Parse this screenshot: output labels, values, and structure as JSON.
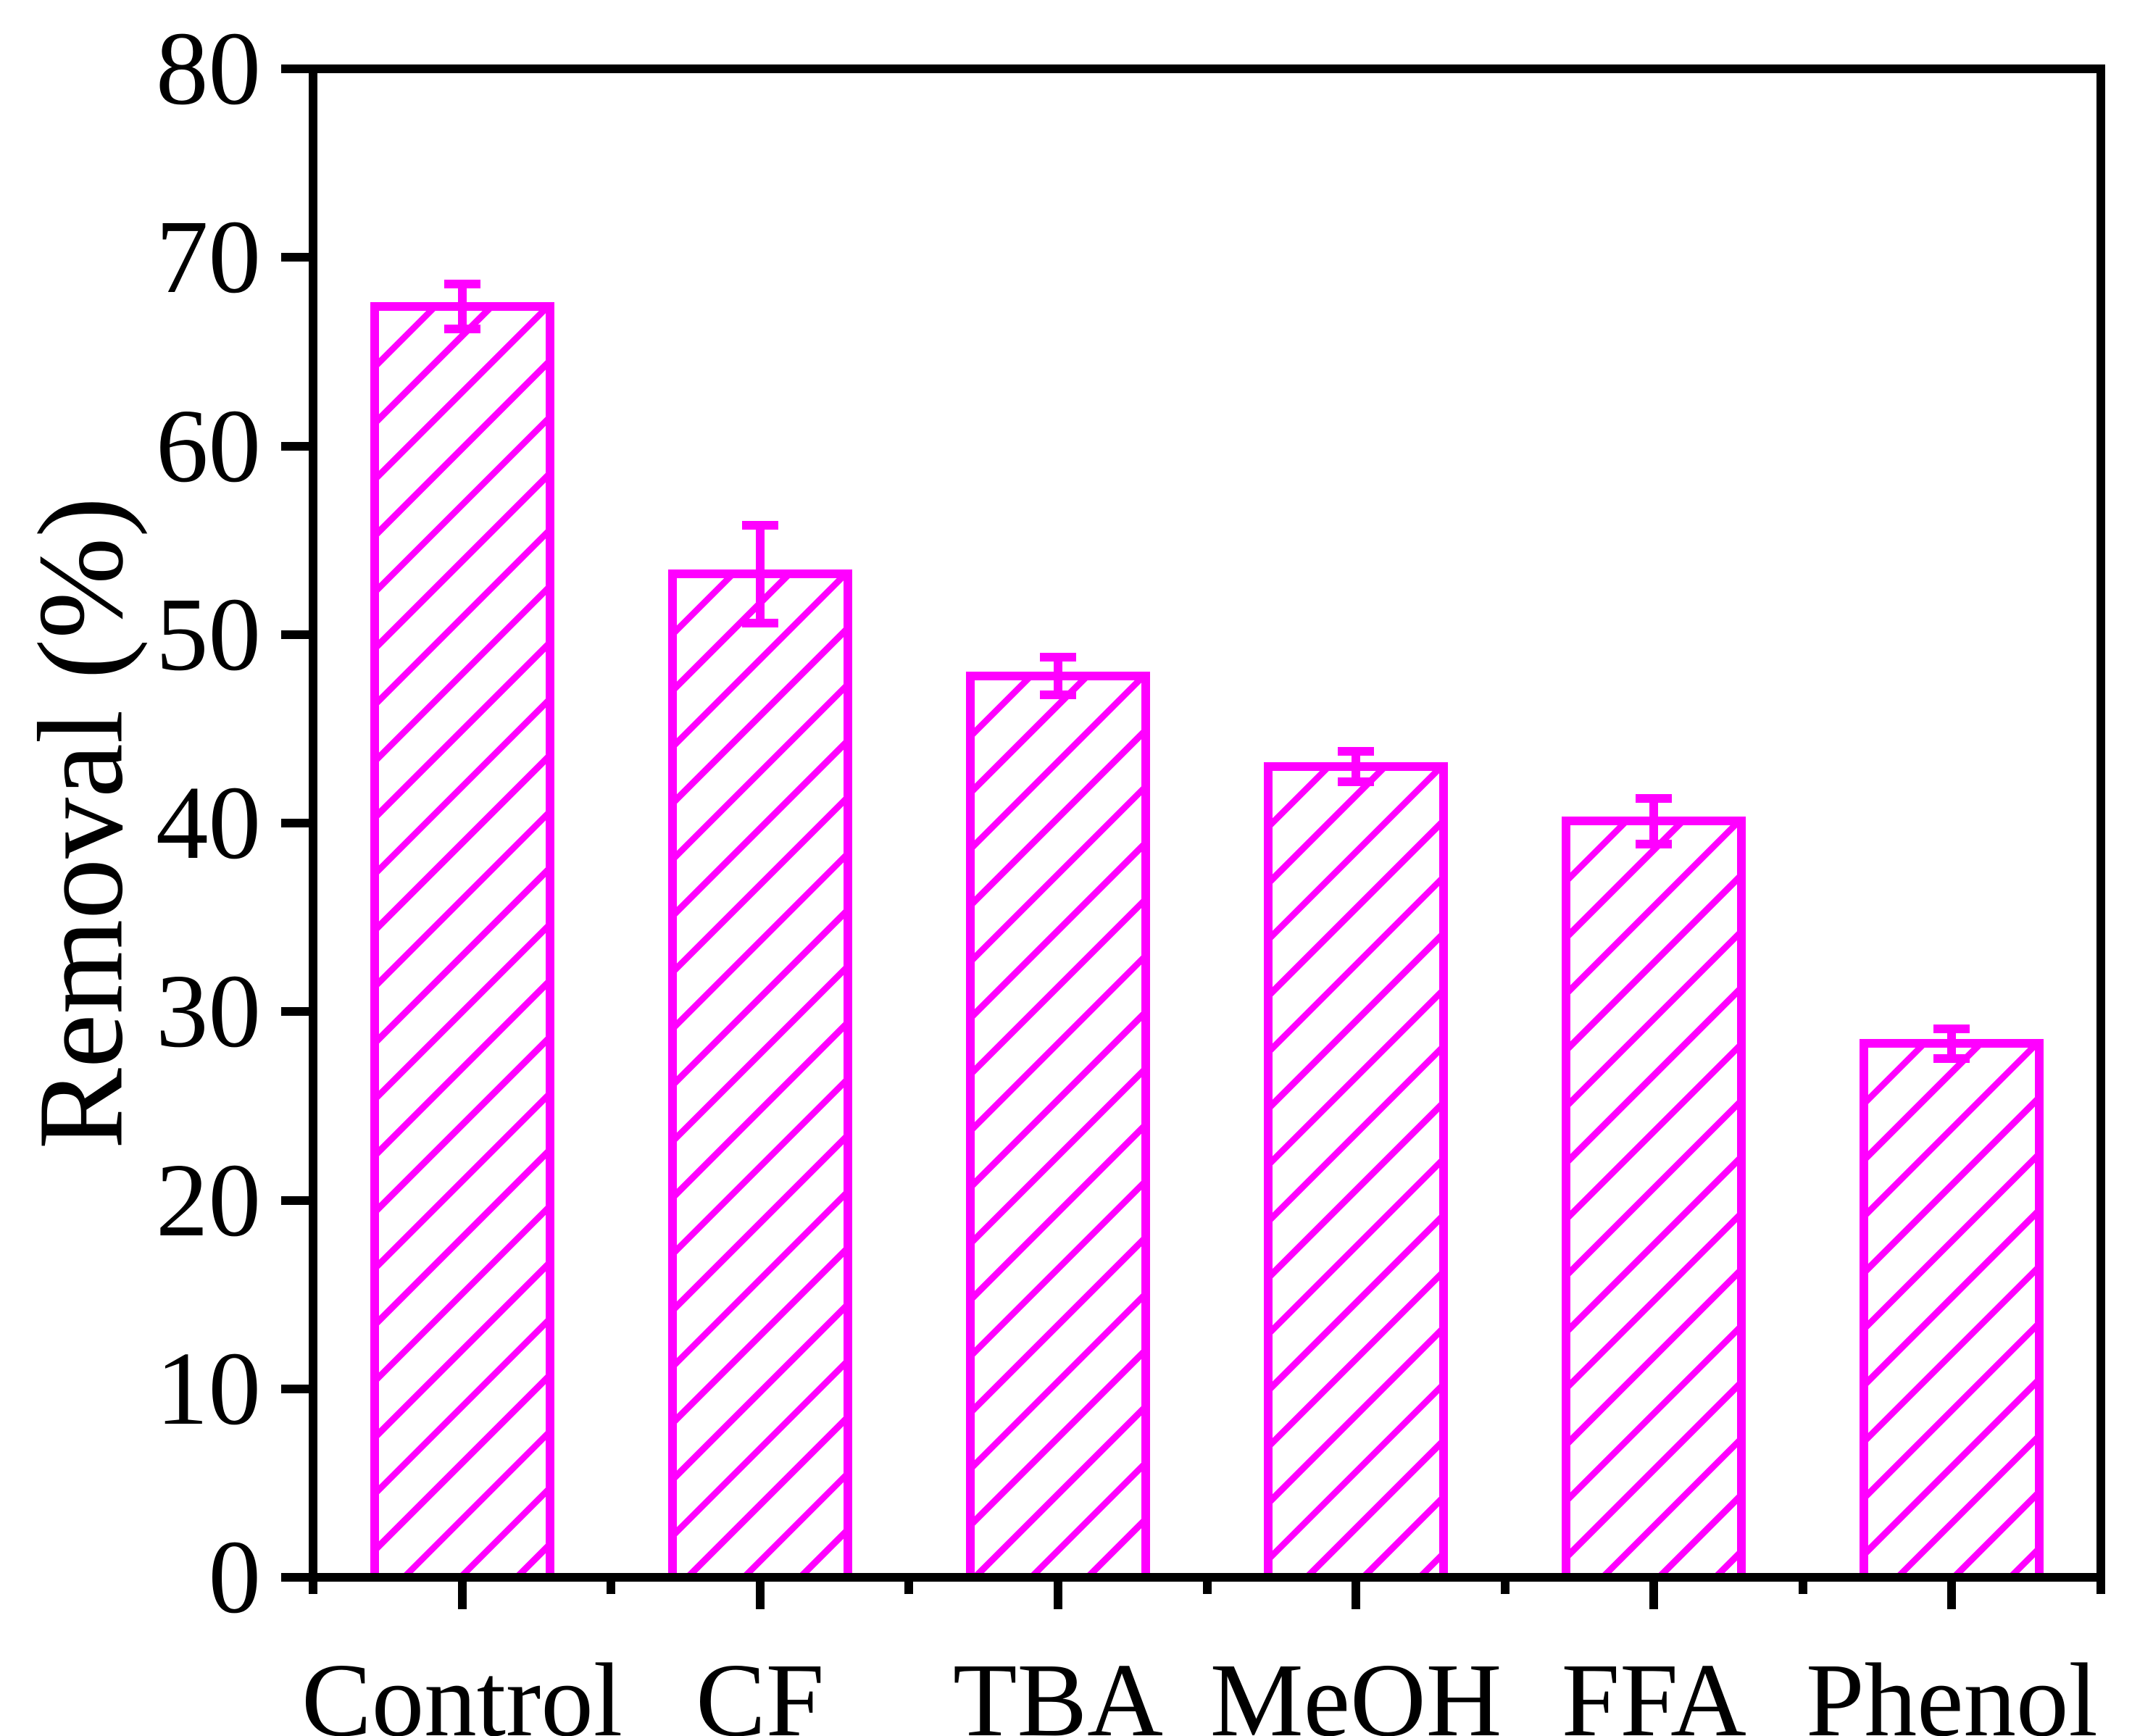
{
  "chart_data": {
    "type": "bar",
    "title": "",
    "xlabel": "",
    "ylabel": "Removal (%)",
    "ylim": [
      0,
      80
    ],
    "yticks": [
      0,
      10,
      20,
      30,
      40,
      50,
      60,
      70,
      80
    ],
    "categories": [
      "Control",
      "CF",
      "TBA",
      "MeOH",
      "FFA",
      "Phenol"
    ],
    "series": [
      {
        "name": "Removal",
        "values": [
          67.4,
          53.2,
          47.8,
          43.0,
          40.1,
          28.3
        ],
        "errors": [
          1.2,
          2.6,
          1.0,
          0.8,
          1.2,
          0.8
        ]
      }
    ],
    "error_bars": true,
    "grid": false,
    "legend": "none",
    "bar_color": "#FF00FF",
    "bar_fill": "white with magenta diagonal hatch (/)",
    "axis_color": "#000000",
    "background_color": "#FFFFFF"
  }
}
